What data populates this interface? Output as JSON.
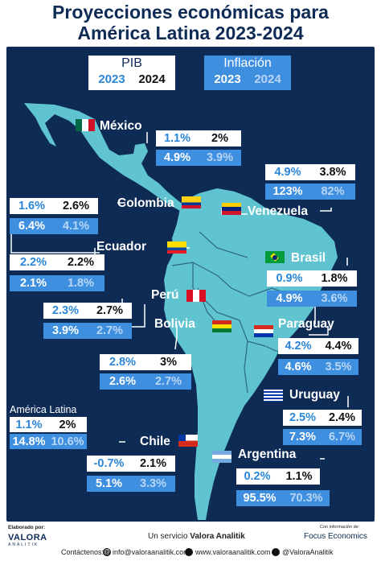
{
  "title_line1": "Proyecciones económicas para",
  "title_line2": "América Latina 2023-2024",
  "legend": {
    "pib_label": "PIB",
    "inflacion_label": "Inflación",
    "y2023": "2023",
    "y2024": "2024"
  },
  "countries": {
    "mexico": {
      "name": "México",
      "pib": [
        "1.1%",
        "2%"
      ],
      "inf": [
        "4.9%",
        "3.9%"
      ]
    },
    "venezuela": {
      "name": "Venezuela",
      "pib": [
        "4.9%",
        "3.8%"
      ],
      "inf": [
        "123%",
        "82%"
      ]
    },
    "colombia": {
      "name": "Colombia",
      "pib": [
        "1.6%",
        "2.6%"
      ],
      "inf": [
        "6.4%",
        "4.1%"
      ]
    },
    "ecuador": {
      "name": "Ecuador",
      "pib": [
        "2.2%",
        "2.2%"
      ],
      "inf": [
        "2.1%",
        "1.8%"
      ]
    },
    "brasil": {
      "name": "Brasil",
      "pib": [
        "0.9%",
        "1.8%"
      ],
      "inf": [
        "4.9%",
        "3.6%"
      ]
    },
    "peru": {
      "name": "Perú",
      "pib": [
        "2.3%",
        "2.7%"
      ],
      "inf": [
        "3.9%",
        "2.7%"
      ]
    },
    "bolivia": {
      "name": "Bolivia",
      "pib": [
        "2.8%",
        "3%"
      ],
      "inf": [
        "2.6%",
        "2.7%"
      ]
    },
    "paraguay": {
      "name": "Paraguay",
      "pib": [
        "4.2%",
        "4.4%"
      ],
      "inf": [
        "4.6%",
        "3.5%"
      ]
    },
    "uruguay": {
      "name": "Uruguay",
      "pib": [
        "2.5%",
        "2.4%"
      ],
      "inf": [
        "7.3%",
        "6.7%"
      ]
    },
    "latam": {
      "name": "América Latina",
      "pib": [
        "1.1%",
        "2%"
      ],
      "inf": [
        "14.8%",
        "10.6%"
      ]
    },
    "chile": {
      "name": "Chile",
      "pib": [
        "-0.7%",
        "2.1%"
      ],
      "inf": [
        "5.1%",
        "3.3%"
      ]
    },
    "argentina": {
      "name": "Argentina",
      "pib": [
        "0.2%",
        "1.1%"
      ],
      "inf": [
        "95.5%",
        "70.3%"
      ]
    }
  },
  "footer": {
    "elaborado": "Elaborado por:",
    "brand": "VALORA",
    "brand_sub": "ANALITIK",
    "servicio_prefix": "Un servicio ",
    "servicio_brand": "Valora Analitik",
    "info_de": "Con información de:",
    "source": "Focus Economics",
    "contactenos": "Contáctenos:",
    "email": "info@valoraanalitik.com",
    "web": "www.valoraanalitik.com",
    "handle": "@ValoraAnalitik"
  },
  "colors": {
    "navy": "#0d2b55",
    "land": "#5fc4cf",
    "blue": "#3f8fe0"
  }
}
